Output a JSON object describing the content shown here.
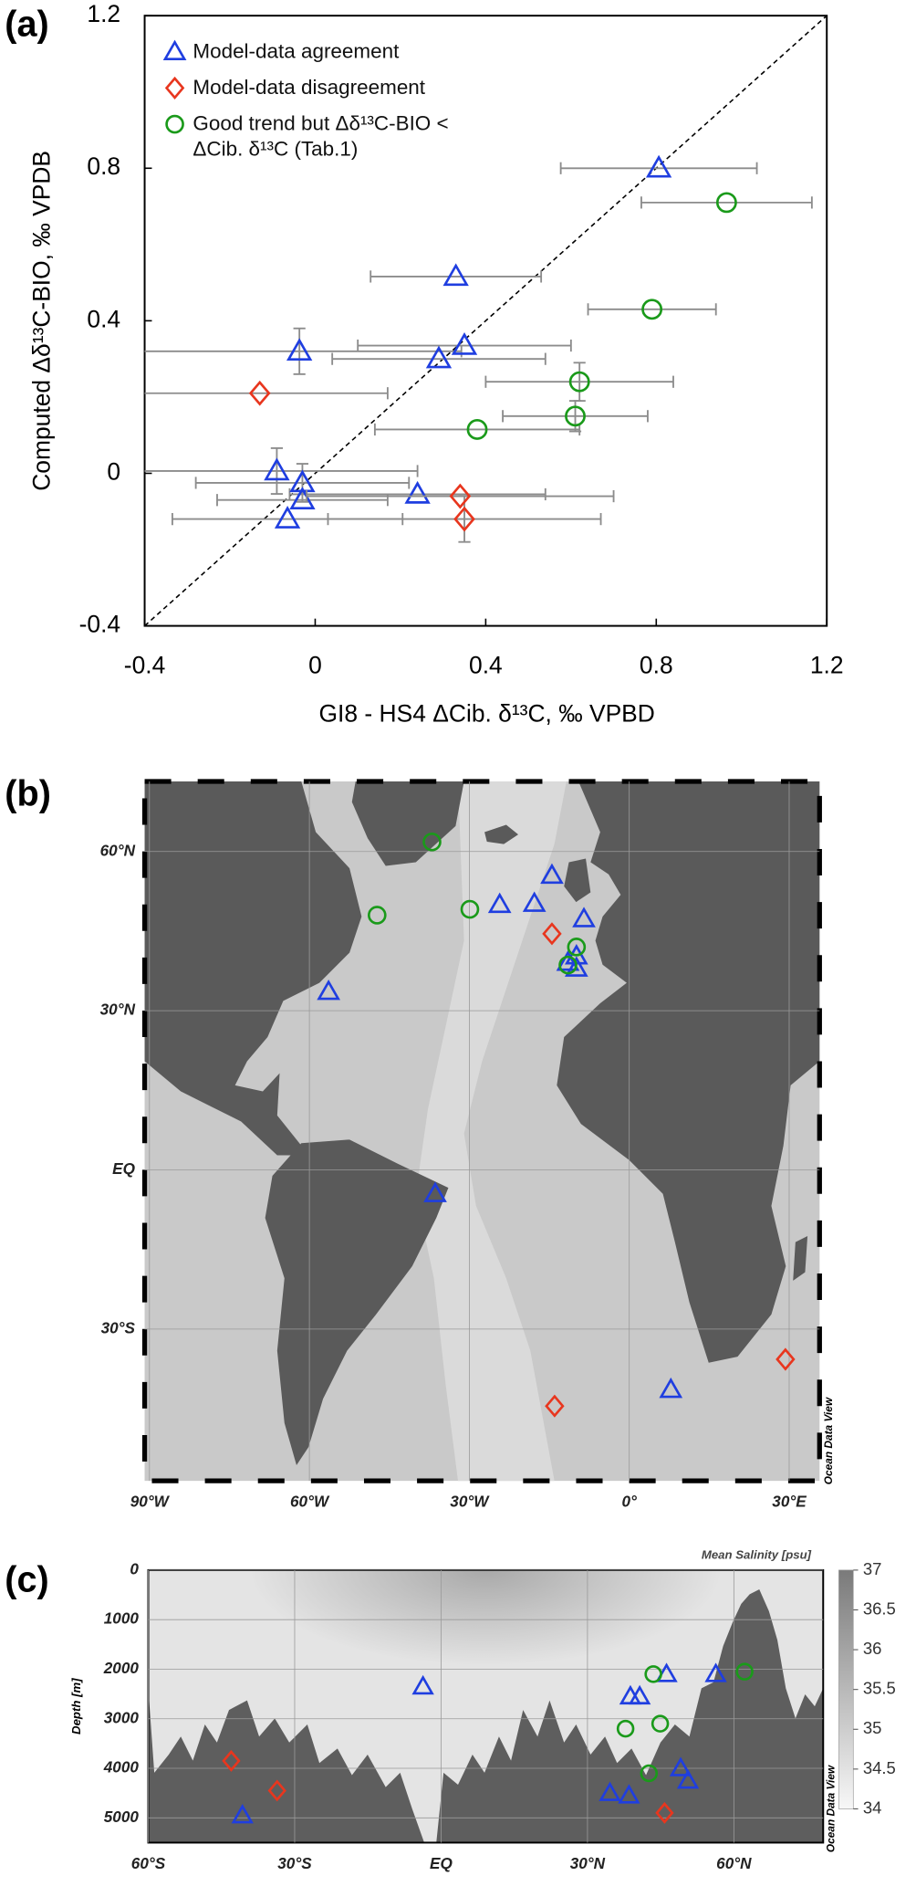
{
  "chart_data": [
    {
      "type": "scatter",
      "panel": "(a)",
      "xlabel": "GI8 - HS4 ΔCib. δ¹³C, ‰ VPBD",
      "ylabel": "Computed Δδ¹³C-BIO, ‰ VPDB",
      "xlim": [
        -0.4,
        1.2
      ],
      "ylim": [
        -0.4,
        1.2
      ],
      "xticks": [
        -0.4,
        0,
        0.4,
        0.8,
        1.2
      ],
      "yticks": [
        -0.4,
        0,
        0.4,
        0.8,
        1.2
      ],
      "legend": "upper left",
      "identity_line": true,
      "series": [
        {
          "name": "Model-data agreement",
          "color": "#1f3ee0",
          "marker": "triangle",
          "x": [
            0.806,
            0.33,
            -0.037,
            0.29,
            0.35,
            -0.09,
            -0.03,
            -0.03,
            -0.065,
            0.24
          ],
          "y": [
            0.8,
            0.516,
            0.32,
            0.3,
            0.335,
            0.006,
            -0.025,
            -0.07,
            -0.12,
            -0.055
          ],
          "xerr": [
            0.23,
            0.2,
            0.38,
            0.25,
            0.25,
            0.33,
            0.25,
            0.2,
            0.27,
            0.3
          ],
          "yerr": [
            null,
            null,
            0.06,
            null,
            null,
            0.06,
            0.05,
            null,
            null,
            null
          ]
        },
        {
          "name": "Model-data disagreement",
          "color": "#e8361e",
          "marker": "diamond",
          "x": [
            -0.13,
            0.34,
            0.35
          ],
          "y": [
            0.21,
            -0.06,
            -0.12
          ],
          "xerr": [
            0.3,
            0.36,
            0.32
          ],
          "yerr": [
            null,
            null,
            0.06
          ]
        },
        {
          "name": "Good trend but Δδ¹³C-BIO < ΔCib. δ¹³C (Tab.1)",
          "color": "#1a9a1a",
          "marker": "circle",
          "x": [
            0.965,
            0.79,
            0.62,
            0.61,
            0.38
          ],
          "y": [
            0.71,
            0.43,
            0.24,
            0.15,
            0.115
          ],
          "xerr": [
            0.2,
            0.15,
            0.22,
            0.17,
            0.24
          ],
          "yerr": [
            null,
            null,
            0.05,
            0.04,
            null
          ]
        }
      ]
    },
    {
      "type": "map",
      "panel": "(b)",
      "watermark": "Ocean Data View",
      "xlim": [
        -90.9,
        35.7
      ],
      "ylim": [
        -58.6,
        73.2
      ],
      "grid": true,
      "xticks": [
        {
          "value": -90,
          "label": "90°W"
        },
        {
          "value": -60,
          "label": "60°W"
        },
        {
          "value": -30,
          "label": "30°W"
        },
        {
          "value": 0,
          "label": "0°"
        },
        {
          "value": 30,
          "label": "30°E"
        }
      ],
      "yticks": [
        {
          "value": 60,
          "label": "60°N"
        },
        {
          "value": 30,
          "label": "30°N"
        },
        {
          "value": 0,
          "label": "EQ"
        },
        {
          "value": -30,
          "label": "30°S"
        }
      ],
      "series": [
        {
          "color": "#1f3ee0",
          "marker": "triangle",
          "x": [
            -56.4,
            -24.3,
            -17.8,
            -14.5,
            -8.5,
            -11.5,
            -9.9,
            -9.9,
            -36.4,
            7.8
          ],
          "y": [
            33.6,
            50,
            50.2,
            55.5,
            47.3,
            39.1,
            38,
            40.3,
            -4.5,
            -41.4
          ]
        },
        {
          "color": "#e8361e",
          "marker": "diamond",
          "x": [
            -14.5,
            -14,
            29.3
          ],
          "y": [
            44.5,
            -44.5,
            -35.7
          ]
        },
        {
          "color": "#1a9a1a",
          "marker": "circle",
          "x": [
            -37,
            -47.3,
            -29.9,
            -9.9,
            -11.5
          ],
          "y": [
            61.8,
            48,
            49.1,
            42,
            38.6
          ]
        }
      ]
    },
    {
      "type": "section",
      "panel": "(c)",
      "watermark": "Ocean Data View",
      "ylabel": "Depth [m]",
      "xlim": [
        -60,
        78.3
      ],
      "ylim": [
        5500,
        0
      ],
      "grid": true,
      "xticks": [
        {
          "value": -60,
          "label": "60°S"
        },
        {
          "value": -30,
          "label": "30°S"
        },
        {
          "value": 0,
          "label": "EQ"
        },
        {
          "value": 30,
          "label": "30°N"
        },
        {
          "value": 60,
          "label": "60°N"
        }
      ],
      "yticks": [
        0,
        1000,
        2000,
        3000,
        4000,
        5000
      ],
      "colorbar": {
        "title": "Mean Salinity [psu]",
        "lim": [
          34,
          37
        ],
        "ticks": [
          34,
          34.5,
          35,
          35.5,
          36,
          36.5,
          37
        ]
      },
      "series": [
        {
          "color": "#1f3ee0",
          "marker": "triangle",
          "x": [
            -40.7,
            -3.7,
            38.8,
            40.7,
            46.2,
            56.3,
            49.1,
            50.6,
            34.6,
            38.5
          ],
          "y": [
            4950,
            2350,
            2550,
            2550,
            2100,
            2100,
            4000,
            4250,
            4500,
            4550
          ]
        },
        {
          "color": "#e8361e",
          "marker": "diamond",
          "x": [
            -43,
            -33.6,
            45.8
          ],
          "y": [
            3850,
            4450,
            4900
          ]
        },
        {
          "color": "#1a9a1a",
          "marker": "circle",
          "x": [
            43.5,
            62.2,
            37.8,
            44.9,
            42.6
          ],
          "y": [
            2100,
            2050,
            3200,
            3100,
            4100
          ]
        }
      ]
    }
  ]
}
